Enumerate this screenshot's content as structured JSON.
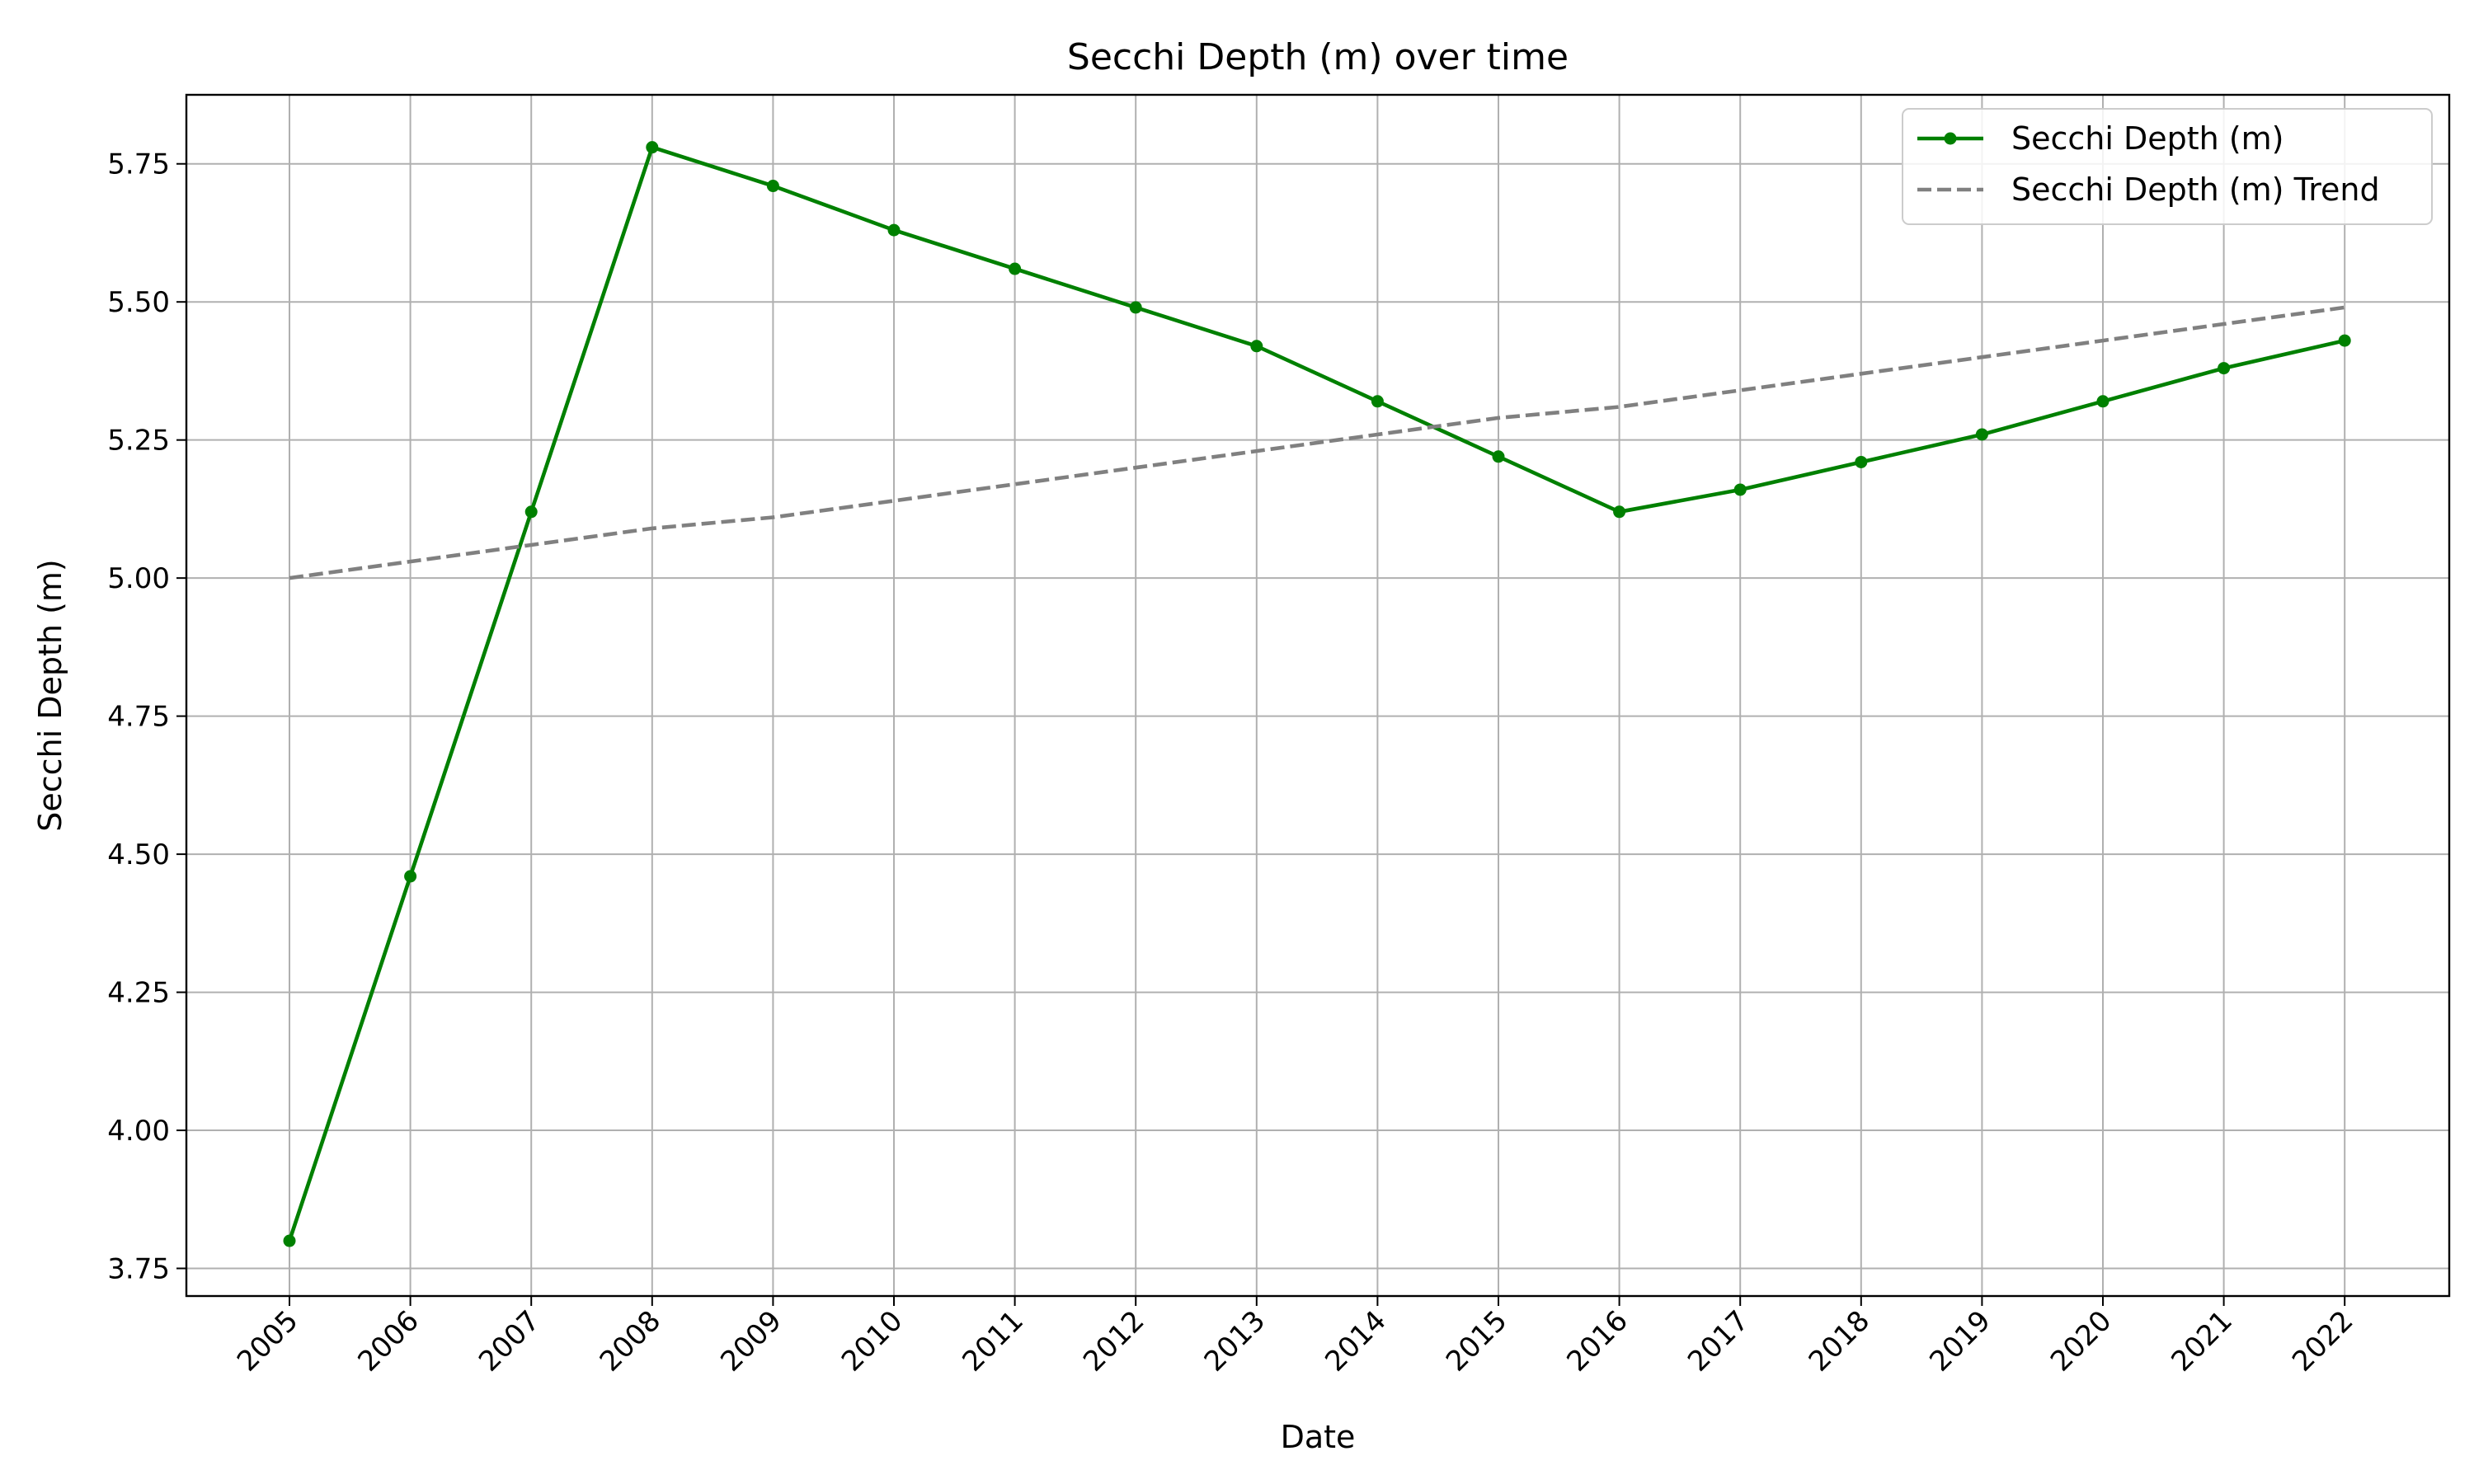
{
  "chart_data": {
    "type": "line",
    "title": "Secchi Depth (m) over time",
    "xlabel": "Date",
    "ylabel": "Secchi Depth (m)",
    "x": [
      "2005",
      "2006",
      "2007",
      "2008",
      "2009",
      "2010",
      "2011",
      "2012",
      "2013",
      "2014",
      "2015",
      "2016",
      "2017",
      "2018",
      "2019",
      "2020",
      "2021",
      "2022"
    ],
    "series": [
      {
        "name": "Secchi Depth (m)",
        "color": "#008000",
        "style": "solid",
        "marker": "circle",
        "values": [
          3.8,
          4.46,
          5.12,
          5.78,
          5.71,
          5.63,
          5.56,
          5.49,
          5.42,
          5.32,
          5.22,
          5.12,
          5.16,
          5.21,
          5.26,
          5.32,
          5.38,
          5.43
        ]
      },
      {
        "name": "Secchi Depth (m) Trend",
        "color": "#808080",
        "style": "dashed",
        "marker": "none",
        "values": [
          5.0,
          5.03,
          5.06,
          5.09,
          5.11,
          5.14,
          5.17,
          5.2,
          5.23,
          5.26,
          5.29,
          5.31,
          5.34,
          5.37,
          5.4,
          5.43,
          5.46,
          5.49
        ]
      }
    ],
    "ylim": [
      3.7,
      5.875
    ],
    "yticks": [
      "3.75",
      "4.00",
      "4.25",
      "4.50",
      "4.75",
      "5.00",
      "5.25",
      "5.50",
      "5.75"
    ],
    "grid": true,
    "legend_position": "top-right"
  }
}
